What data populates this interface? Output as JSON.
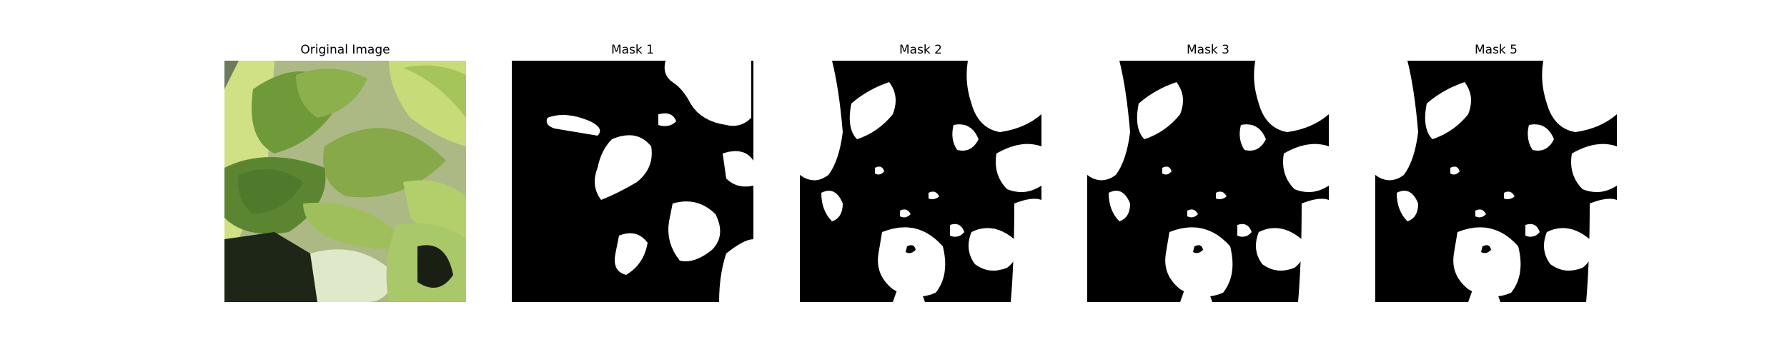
{
  "panels": [
    {
      "title": "Original Image",
      "kind": "photo",
      "content": "close-up photo of green plant leaves"
    },
    {
      "title": "Mask 1",
      "kind": "mask"
    },
    {
      "title": "Mask 2",
      "kind": "mask"
    },
    {
      "title": "Mask 3",
      "kind": "mask"
    },
    {
      "title": "Mask 5",
      "kind": "mask"
    }
  ],
  "colors": {
    "mask_background": "#000000",
    "mask_foreground": "#ffffff",
    "leaf_dark": "#4f7a2c",
    "leaf_light": "#c9df7a"
  }
}
